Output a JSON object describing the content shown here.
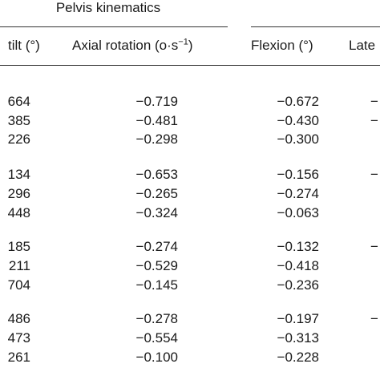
{
  "header": {
    "group_title": "Pelvis kinematics",
    "columns": [
      {
        "text": "tilt (°)"
      },
      {
        "text": "Axial rotation (o·s",
        "sup": "−1",
        "after": ")"
      },
      {
        "text": "Flexion (°)"
      },
      {
        "text": "Late"
      }
    ]
  },
  "table": {
    "rows": [
      [
        "664",
        "−0.719",
        "−0.672",
        "−"
      ],
      [
        "385",
        "−0.481",
        "−0.430",
        "−"
      ],
      [
        "226",
        "−0.298",
        "−0.300",
        ""
      ],
      [
        "134",
        "−0.653",
        "−0.156",
        "−"
      ],
      [
        "296",
        "−0.265",
        "−0.274",
        ""
      ],
      [
        "448",
        "−0.324",
        "−0.063",
        ""
      ],
      [
        "185",
        "−0.274",
        "−0.132",
        "−"
      ],
      [
        "211",
        "−0.529",
        "−0.418",
        ""
      ],
      [
        "704",
        "−0.145",
        "−0.236",
        ""
      ],
      [
        "486",
        "−0.278",
        "−0.197",
        "−"
      ],
      [
        "473",
        "−0.554",
        "−0.313",
        ""
      ],
      [
        "261",
        "−0.100",
        "−0.228",
        ""
      ]
    ]
  }
}
